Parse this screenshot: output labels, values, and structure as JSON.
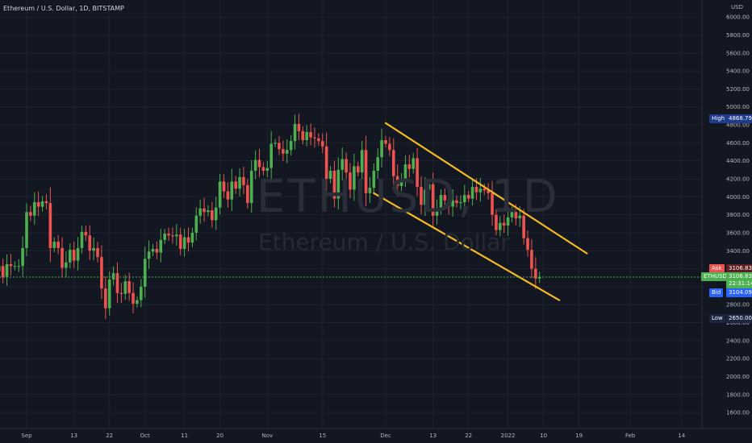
{
  "header": {
    "title": "Ethereum / U.S. Dollar, 1D, BITSTAMP"
  },
  "watermark": {
    "symbol": "ETHUSD, 1D",
    "name": "Ethereum / U.S. Dollar"
  },
  "axis": {
    "currency": "USD"
  },
  "price_markers": {
    "high": {
      "label": "High",
      "value": "4868.79"
    },
    "ask": {
      "label": "Ask",
      "value": "3106.83"
    },
    "last": {
      "label": "ETHUSD",
      "value": "3106.83",
      "countdown": "22:31:14"
    },
    "bid": {
      "label": "Bid",
      "value": "3104.09"
    },
    "low": {
      "label": "Low",
      "value": "2650.00"
    }
  },
  "colors": {
    "background": "#131722",
    "grid": "#1e222d",
    "up": "#26a69a",
    "up_body": "#4caf50",
    "down": "#ef5350",
    "channel": "#f5b921",
    "last_line": "#4caf50",
    "high_badge": "#1e3a8a",
    "low_badge": "#1c2541",
    "bid_badge": "#2962ff",
    "ask_badge": "#ef5350"
  },
  "chart_data": {
    "type": "candlestick",
    "symbol": "ETHUSD",
    "interval": "1D",
    "exchange": "BITSTAMP",
    "ylim": [
      1400,
      6100
    ],
    "y_ticks": [
      1600,
      1800,
      2000,
      2200,
      2400,
      2600,
      2800,
      3000,
      3200,
      3400,
      3600,
      3800,
      4000,
      4200,
      4400,
      4600,
      4800,
      5000,
      5200,
      5400,
      5600,
      5800,
      6000
    ],
    "y_tick_labels": [
      "1600.00",
      "1800.00",
      "2000.00",
      "2200.00",
      "2400.00",
      "2600.00",
      "2800.00",
      "3000.00",
      "3200.00",
      "3400.00",
      "3600.00",
      "3800.00",
      "4000.00",
      "4200.00",
      "4400.00",
      "4600.00",
      "4800.00",
      "5000.00",
      "5200.00",
      "5400.00",
      "5600.00",
      "5800.00",
      "6000.00"
    ],
    "x_ticks": [
      {
        "label": "Sep",
        "date": "2021-09-01"
      },
      {
        "label": "13",
        "date": "2021-09-13"
      },
      {
        "label": "22",
        "date": "2021-09-22"
      },
      {
        "label": "Oct",
        "date": "2021-10-01"
      },
      {
        "label": "11",
        "date": "2021-10-11"
      },
      {
        "label": "20",
        "date": "2021-10-20"
      },
      {
        "label": "Nov",
        "date": "2021-11-01"
      },
      {
        "label": "15",
        "date": "2021-11-15"
      },
      {
        "label": "Dec",
        "date": "2021-12-01"
      },
      {
        "label": "13",
        "date": "2021-12-13"
      },
      {
        "label": "22",
        "date": "2021-12-22"
      },
      {
        "label": "2022",
        "date": "2022-01-01"
      },
      {
        "label": "10",
        "date": "2022-01-10"
      },
      {
        "label": "19",
        "date": "2022-01-19"
      },
      {
        "label": "Feb",
        "date": "2022-02-01"
      },
      {
        "label": "14",
        "date": "2022-02-14"
      }
    ],
    "grid": true,
    "last_price": 3106.83,
    "high": 4868.79,
    "low": 2650.0,
    "channel": {
      "upper": [
        {
          "date": "2021-12-01",
          "price": 4820
        },
        {
          "date": "2022-01-21",
          "price": 3370
        }
      ],
      "lower": [
        {
          "date": "2021-11-28",
          "price": 4040
        },
        {
          "date": "2022-01-14",
          "price": 2850
        }
      ]
    },
    "close_series": [
      {
        "date": "2021-08-25",
        "close": 3230
      },
      {
        "date": "2021-08-26",
        "close": 3110
      },
      {
        "date": "2021-08-27",
        "close": 3250
      },
      {
        "date": "2021-08-28",
        "close": 3230
      },
      {
        "date": "2021-08-29",
        "close": 3230
      },
      {
        "date": "2021-08-30",
        "close": 3230
      },
      {
        "date": "2021-08-31",
        "close": 3430
      },
      {
        "date": "2021-09-01",
        "close": 3830
      },
      {
        "date": "2021-09-02",
        "close": 3790
      },
      {
        "date": "2021-09-03",
        "close": 3940
      },
      {
        "date": "2021-09-04",
        "close": 3890
      },
      {
        "date": "2021-09-05",
        "close": 3950
      },
      {
        "date": "2021-09-06",
        "close": 3930
      },
      {
        "date": "2021-09-07",
        "close": 3430
      },
      {
        "date": "2021-09-08",
        "close": 3500
      },
      {
        "date": "2021-09-09",
        "close": 3430
      },
      {
        "date": "2021-09-10",
        "close": 3210
      },
      {
        "date": "2021-09-11",
        "close": 3270
      },
      {
        "date": "2021-09-12",
        "close": 3410
      },
      {
        "date": "2021-09-13",
        "close": 3290
      },
      {
        "date": "2021-09-14",
        "close": 3430
      },
      {
        "date": "2021-09-15",
        "close": 3610
      },
      {
        "date": "2021-09-16",
        "close": 3570
      },
      {
        "date": "2021-09-17",
        "close": 3400
      },
      {
        "date": "2021-09-18",
        "close": 3430
      },
      {
        "date": "2021-09-19",
        "close": 3330
      },
      {
        "date": "2021-09-20",
        "close": 2980
      },
      {
        "date": "2021-09-21",
        "close": 2760
      },
      {
        "date": "2021-09-22",
        "close": 3080
      },
      {
        "date": "2021-09-23",
        "close": 3150
      },
      {
        "date": "2021-09-24",
        "close": 2930
      },
      {
        "date": "2021-09-25",
        "close": 2920
      },
      {
        "date": "2021-09-26",
        "close": 3060
      },
      {
        "date": "2021-09-27",
        "close": 2930
      },
      {
        "date": "2021-09-28",
        "close": 2810
      },
      {
        "date": "2021-09-29",
        "close": 2850
      },
      {
        "date": "2021-09-30",
        "close": 3000
      },
      {
        "date": "2021-10-01",
        "close": 3310
      },
      {
        "date": "2021-10-02",
        "close": 3390
      },
      {
        "date": "2021-10-03",
        "close": 3420
      },
      {
        "date": "2021-10-04",
        "close": 3380
      },
      {
        "date": "2021-10-05",
        "close": 3520
      },
      {
        "date": "2021-10-06",
        "close": 3590
      },
      {
        "date": "2021-10-07",
        "close": 3570
      },
      {
        "date": "2021-10-08",
        "close": 3560
      },
      {
        "date": "2021-10-09",
        "close": 3580
      },
      {
        "date": "2021-10-10",
        "close": 3420
      },
      {
        "date": "2021-10-11",
        "close": 3550
      },
      {
        "date": "2021-10-12",
        "close": 3490
      },
      {
        "date": "2021-10-13",
        "close": 3600
      },
      {
        "date": "2021-10-14",
        "close": 3790
      },
      {
        "date": "2021-10-15",
        "close": 3870
      },
      {
        "date": "2021-10-16",
        "close": 3830
      },
      {
        "date": "2021-10-17",
        "close": 3850
      },
      {
        "date": "2021-10-18",
        "close": 3740
      },
      {
        "date": "2021-10-19",
        "close": 3880
      },
      {
        "date": "2021-10-20",
        "close": 4170
      },
      {
        "date": "2021-10-21",
        "close": 4060
      },
      {
        "date": "2021-10-22",
        "close": 3970
      },
      {
        "date": "2021-10-23",
        "close": 4170
      },
      {
        "date": "2021-10-24",
        "close": 4090
      },
      {
        "date": "2021-10-25",
        "close": 4220
      },
      {
        "date": "2021-10-26",
        "close": 4130
      },
      {
        "date": "2021-10-27",
        "close": 3930
      },
      {
        "date": "2021-10-28",
        "close": 4290
      },
      {
        "date": "2021-10-29",
        "close": 4410
      },
      {
        "date": "2021-10-30",
        "close": 4330
      },
      {
        "date": "2021-10-31",
        "close": 4290
      },
      {
        "date": "2021-11-01",
        "close": 4320
      },
      {
        "date": "2021-11-02",
        "close": 4590
      },
      {
        "date": "2021-11-03",
        "close": 4600
      },
      {
        "date": "2021-11-04",
        "close": 4530
      },
      {
        "date": "2021-11-05",
        "close": 4480
      },
      {
        "date": "2021-11-06",
        "close": 4520
      },
      {
        "date": "2021-11-07",
        "close": 4620
      },
      {
        "date": "2021-11-08",
        "close": 4810
      },
      {
        "date": "2021-11-09",
        "close": 4730
      },
      {
        "date": "2021-11-10",
        "close": 4630
      },
      {
        "date": "2021-11-11",
        "close": 4720
      },
      {
        "date": "2021-11-12",
        "close": 4660
      },
      {
        "date": "2021-11-13",
        "close": 4650
      },
      {
        "date": "2021-11-14",
        "close": 4620
      },
      {
        "date": "2021-11-15",
        "close": 4560
      },
      {
        "date": "2021-11-16",
        "close": 4200
      },
      {
        "date": "2021-11-17",
        "close": 4290
      },
      {
        "date": "2021-11-18",
        "close": 3980
      },
      {
        "date": "2021-11-19",
        "close": 4300
      },
      {
        "date": "2021-11-20",
        "close": 4420
      },
      {
        "date": "2021-11-21",
        "close": 4270
      },
      {
        "date": "2021-11-22",
        "close": 4080
      },
      {
        "date": "2021-11-23",
        "close": 4340
      },
      {
        "date": "2021-11-24",
        "close": 4270
      },
      {
        "date": "2021-11-25",
        "close": 4520
      },
      {
        "date": "2021-11-26",
        "close": 4040
      },
      {
        "date": "2021-11-27",
        "close": 4100
      },
      {
        "date": "2021-11-28",
        "close": 4290
      },
      {
        "date": "2021-11-29",
        "close": 4440
      },
      {
        "date": "2021-11-30",
        "close": 4630
      },
      {
        "date": "2021-12-01",
        "close": 4590
      },
      {
        "date": "2021-12-02",
        "close": 4520
      },
      {
        "date": "2021-12-03",
        "close": 4230
      },
      {
        "date": "2021-12-04",
        "close": 4120
      },
      {
        "date": "2021-12-05",
        "close": 4200
      },
      {
        "date": "2021-12-06",
        "close": 4360
      },
      {
        "date": "2021-12-07",
        "close": 4310
      },
      {
        "date": "2021-12-08",
        "close": 4430
      },
      {
        "date": "2021-12-09",
        "close": 4110
      },
      {
        "date": "2021-12-10",
        "close": 3910
      },
      {
        "date": "2021-12-11",
        "close": 4080
      },
      {
        "date": "2021-12-12",
        "close": 4140
      },
      {
        "date": "2021-12-13",
        "close": 3790
      },
      {
        "date": "2021-12-14",
        "close": 3860
      },
      {
        "date": "2021-12-15",
        "close": 4020
      },
      {
        "date": "2021-12-16",
        "close": 3960
      },
      {
        "date": "2021-12-17",
        "close": 3890
      },
      {
        "date": "2021-12-18",
        "close": 3960
      },
      {
        "date": "2021-12-19",
        "close": 3930
      },
      {
        "date": "2021-12-20",
        "close": 3940
      },
      {
        "date": "2021-12-21",
        "close": 4020
      },
      {
        "date": "2021-12-22",
        "close": 3980
      },
      {
        "date": "2021-12-23",
        "close": 4110
      },
      {
        "date": "2021-12-24",
        "close": 4050
      },
      {
        "date": "2021-12-25",
        "close": 4090
      },
      {
        "date": "2021-12-26",
        "close": 4070
      },
      {
        "date": "2021-12-27",
        "close": 4040
      },
      {
        "date": "2021-12-28",
        "close": 3800
      },
      {
        "date": "2021-12-29",
        "close": 3630
      },
      {
        "date": "2021-12-30",
        "close": 3710
      },
      {
        "date": "2021-12-31",
        "close": 3680
      },
      {
        "date": "2022-01-01",
        "close": 3770
      },
      {
        "date": "2022-01-02",
        "close": 3830
      },
      {
        "date": "2022-01-03",
        "close": 3760
      },
      {
        "date": "2022-01-04",
        "close": 3790
      },
      {
        "date": "2022-01-05",
        "close": 3540
      },
      {
        "date": "2022-01-06",
        "close": 3410
      },
      {
        "date": "2022-01-07",
        "close": 3200
      },
      {
        "date": "2022-01-08",
        "close": 3090
      },
      {
        "date": "2022-01-09",
        "close": 3110
      }
    ]
  }
}
